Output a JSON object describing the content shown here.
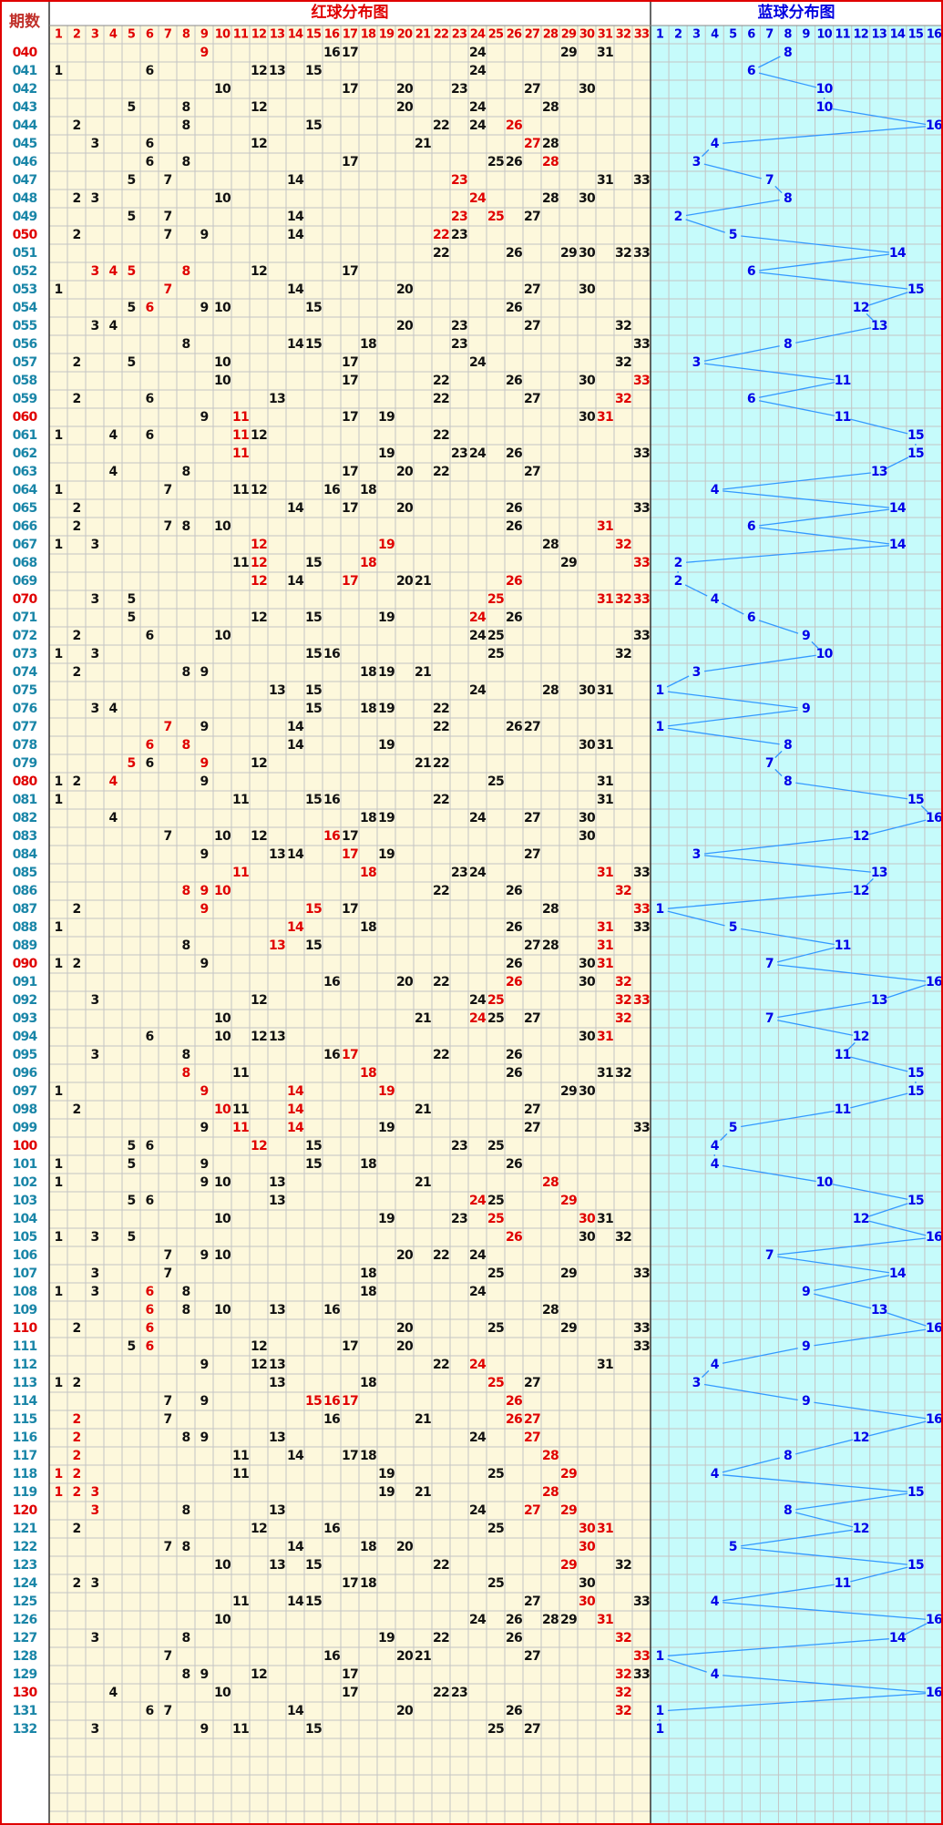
{
  "header": {
    "period_title": "期数",
    "red_title": "红球分布图",
    "blue_title": "蓝球分布图",
    "red_columns": [
      1,
      2,
      3,
      4,
      5,
      6,
      7,
      8,
      9,
      10,
      11,
      12,
      13,
      14,
      15,
      16,
      17,
      18,
      19,
      20,
      21,
      22,
      23,
      24,
      25,
      26,
      27,
      28,
      29,
      30,
      31,
      32,
      33
    ],
    "blue_columns": [
      1,
      2,
      3,
      4,
      5,
      6,
      7,
      8,
      9,
      10,
      11,
      12,
      13,
      14,
      15,
      16
    ]
  },
  "rows": [
    {
      "period": "040",
      "red": [
        9,
        16,
        17,
        24,
        29,
        31
      ],
      "red_hl": [
        0
      ],
      "blue": 8
    },
    {
      "period": "041",
      "red": [
        1,
        6,
        12,
        13,
        15,
        24
      ],
      "red_hl": [],
      "blue": 6
    },
    {
      "period": "042",
      "red": [
        10,
        17,
        20,
        23,
        27,
        30
      ],
      "red_hl": [],
      "blue": 10
    },
    {
      "period": "043",
      "red": [
        5,
        8,
        12,
        20,
        24,
        28
      ],
      "red_hl": [],
      "blue": 10
    },
    {
      "period": "044",
      "red": [
        2,
        8,
        15,
        22,
        24,
        26
      ],
      "red_hl": [
        5
      ],
      "blue": 16
    },
    {
      "period": "045",
      "red": [
        3,
        6,
        12,
        21,
        27,
        28
      ],
      "red_hl": [
        4
      ],
      "blue": 4
    },
    {
      "period": "046",
      "red": [
        6,
        8,
        17,
        25,
        26,
        28
      ],
      "red_hl": [
        5
      ],
      "blue": 3
    },
    {
      "period": "047",
      "red": [
        5,
        7,
        14,
        23,
        31,
        33
      ],
      "red_hl": [
        3
      ],
      "blue": 7
    },
    {
      "period": "048",
      "red": [
        2,
        3,
        10,
        24,
        28,
        30
      ],
      "red_hl": [
        3
      ],
      "blue": 8
    },
    {
      "period": "049",
      "red": [
        5,
        7,
        14,
        23,
        25,
        27
      ],
      "red_hl": [
        3,
        4
      ],
      "blue": 2
    },
    {
      "period": "050",
      "red": [
        2,
        7,
        9,
        14,
        22,
        23
      ],
      "red_hl": [
        4
      ],
      "blue": 5
    },
    {
      "period": "051",
      "red": [
        22,
        26,
        29,
        30,
        32,
        33
      ],
      "red_hl": [],
      "blue": 14
    },
    {
      "period": "052",
      "red": [
        3,
        4,
        5,
        8,
        12,
        17
      ],
      "red_hl": [
        0,
        1,
        2,
        3
      ],
      "blue": 6
    },
    {
      "period": "053",
      "red": [
        1,
        7,
        14,
        20,
        27,
        30
      ],
      "red_hl": [
        1
      ],
      "blue": 15
    },
    {
      "period": "054",
      "red": [
        5,
        6,
        9,
        10,
        15,
        26
      ],
      "red_hl": [
        1
      ],
      "blue": 12
    },
    {
      "period": "055",
      "red": [
        3,
        4,
        20,
        23,
        27,
        32
      ],
      "red_hl": [],
      "blue": 13
    },
    {
      "period": "056",
      "red": [
        8,
        14,
        15,
        18,
        23,
        33
      ],
      "red_hl": [],
      "blue": 8
    },
    {
      "period": "057",
      "red": [
        2,
        5,
        10,
        17,
        24,
        32
      ],
      "red_hl": [],
      "blue": 3
    },
    {
      "period": "058",
      "red": [
        10,
        17,
        22,
        26,
        30,
        33
      ],
      "red_hl": [
        5
      ],
      "blue": 11
    },
    {
      "period": "059",
      "red": [
        2,
        6,
        13,
        22,
        27,
        32
      ],
      "red_hl": [
        5
      ],
      "blue": 6
    },
    {
      "period": "060",
      "red": [
        9,
        11,
        17,
        19,
        30,
        31
      ],
      "red_hl": [
        1,
        5
      ],
      "blue": 11
    },
    {
      "period": "061",
      "red": [
        1,
        4,
        6,
        11,
        12,
        22
      ],
      "red_hl": [
        3
      ],
      "blue": 15
    },
    {
      "period": "062",
      "red": [
        11,
        19,
        23,
        24,
        26,
        33
      ],
      "red_hl": [
        0
      ],
      "blue": 15
    },
    {
      "period": "063",
      "red": [
        4,
        8,
        17,
        20,
        22,
        27
      ],
      "red_hl": [],
      "blue": 13
    },
    {
      "period": "064",
      "red": [
        1,
        7,
        11,
        12,
        16,
        18
      ],
      "red_hl": [],
      "blue": 4
    },
    {
      "period": "065",
      "red": [
        2,
        14,
        17,
        20,
        26,
        33
      ],
      "red_hl": [],
      "blue": 14
    },
    {
      "period": "066",
      "red": [
        2,
        7,
        8,
        10,
        26,
        31
      ],
      "red_hl": [
        5
      ],
      "blue": 6
    },
    {
      "period": "067",
      "red": [
        1,
        3,
        12,
        19,
        28,
        32
      ],
      "red_hl": [
        2,
        3,
        5
      ],
      "blue": 14
    },
    {
      "period": "068",
      "red": [
        11,
        12,
        15,
        18,
        29,
        33
      ],
      "red_hl": [
        1,
        3,
        5
      ],
      "blue": 2
    },
    {
      "period": "069",
      "red": [
        12,
        14,
        17,
        20,
        21,
        26
      ],
      "red_hl": [
        0,
        2,
        5
      ],
      "blue": 2
    },
    {
      "period": "070",
      "red": [
        3,
        5,
        25,
        31,
        32,
        33
      ],
      "red_hl": [
        2,
        3,
        4,
        5
      ],
      "blue": 4
    },
    {
      "period": "071",
      "red": [
        5,
        12,
        15,
        19,
        24,
        26
      ],
      "red_hl": [
        4
      ],
      "blue": 6
    },
    {
      "period": "072",
      "red": [
        2,
        6,
        10,
        24,
        25,
        33
      ],
      "red_hl": [],
      "blue": 9
    },
    {
      "period": "073",
      "red": [
        1,
        3,
        15,
        16,
        25,
        32
      ],
      "red_hl": [],
      "blue": 10
    },
    {
      "period": "074",
      "red": [
        2,
        8,
        9,
        18,
        19,
        21
      ],
      "red_hl": [],
      "blue": 3
    },
    {
      "period": "075",
      "red": [
        13,
        15,
        24,
        28,
        30,
        31
      ],
      "red_hl": [],
      "blue": 1
    },
    {
      "period": "076",
      "red": [
        3,
        4,
        15,
        18,
        19,
        22
      ],
      "red_hl": [],
      "blue": 9
    },
    {
      "period": "077",
      "red": [
        7,
        9,
        14,
        22,
        26,
        27
      ],
      "red_hl": [
        0
      ],
      "blue": 1
    },
    {
      "period": "078",
      "red": [
        6,
        8,
        14,
        19,
        30,
        31
      ],
      "red_hl": [
        0,
        1
      ],
      "blue": 8
    },
    {
      "period": "079",
      "red": [
        5,
        6,
        9,
        12,
        21,
        22
      ],
      "red_hl": [
        0,
        2
      ],
      "blue": 7
    },
    {
      "period": "080",
      "red": [
        1,
        2,
        4,
        9,
        25,
        31
      ],
      "red_hl": [
        2
      ],
      "blue": 8
    },
    {
      "period": "081",
      "red": [
        1,
        11,
        15,
        16,
        22,
        31
      ],
      "red_hl": [],
      "blue": 15
    },
    {
      "period": "082",
      "red": [
        4,
        18,
        19,
        24,
        27,
        30
      ],
      "red_hl": [],
      "blue": 16
    },
    {
      "period": "083",
      "red": [
        7,
        10,
        12,
        16,
        17,
        30
      ],
      "red_hl": [
        3
      ],
      "blue": 12
    },
    {
      "period": "084",
      "red": [
        9,
        13,
        14,
        17,
        19,
        27
      ],
      "red_hl": [
        3
      ],
      "blue": 3
    },
    {
      "period": "085",
      "red": [
        11,
        18,
        23,
        24,
        31,
        33
      ],
      "red_hl": [
        0,
        1,
        4
      ],
      "blue": 13
    },
    {
      "period": "086",
      "red": [
        8,
        9,
        10,
        22,
        26,
        32
      ],
      "red_hl": [
        0,
        1,
        2,
        5
      ],
      "blue": 12
    },
    {
      "period": "087",
      "red": [
        2,
        9,
        15,
        17,
        28,
        33
      ],
      "red_hl": [
        1,
        2,
        5
      ],
      "blue": 1
    },
    {
      "period": "088",
      "red": [
        1,
        14,
        18,
        26,
        31,
        33
      ],
      "red_hl": [
        1,
        4
      ],
      "blue": 5
    },
    {
      "period": "089",
      "red": [
        8,
        13,
        15,
        27,
        28,
        31
      ],
      "red_hl": [
        1,
        5
      ],
      "blue": 11
    },
    {
      "period": "090",
      "red": [
        1,
        2,
        9,
        26,
        30,
        31
      ],
      "red_hl": [
        5
      ],
      "blue": 7
    },
    {
      "period": "091",
      "red": [
        16,
        20,
        22,
        26,
        30,
        32
      ],
      "red_hl": [
        3,
        5
      ],
      "blue": 16
    },
    {
      "period": "092",
      "red": [
        3,
        12,
        24,
        25,
        32,
        33
      ],
      "red_hl": [
        3,
        4,
        5
      ],
      "blue": 13
    },
    {
      "period": "093",
      "red": [
        10,
        21,
        24,
        25,
        27,
        32
      ],
      "red_hl": [
        2,
        5
      ],
      "blue": 7
    },
    {
      "period": "094",
      "red": [
        6,
        10,
        12,
        13,
        30,
        31
      ],
      "red_hl": [
        5
      ],
      "blue": 12
    },
    {
      "period": "095",
      "red": [
        3,
        8,
        16,
        17,
        22,
        26
      ],
      "red_hl": [
        3
      ],
      "blue": 11
    },
    {
      "period": "096",
      "red": [
        8,
        11,
        18,
        26,
        31,
        32
      ],
      "red_hl": [
        0,
        2
      ],
      "blue": 15
    },
    {
      "period": "097",
      "red": [
        1,
        9,
        14,
        19,
        29,
        30
      ],
      "red_hl": [
        1,
        2,
        3
      ],
      "blue": 15
    },
    {
      "period": "098",
      "red": [
        2,
        10,
        11,
        14,
        21,
        27
      ],
      "red_hl": [
        1,
        3
      ],
      "blue": 11
    },
    {
      "period": "099",
      "red": [
        9,
        11,
        14,
        19,
        27,
        33
      ],
      "red_hl": [
        1,
        2
      ],
      "blue": 5
    },
    {
      "period": "100",
      "red": [
        5,
        6,
        12,
        15,
        23,
        25
      ],
      "red_hl": [
        2
      ],
      "blue": 4
    },
    {
      "period": "101",
      "red": [
        1,
        5,
        9,
        15,
        18,
        26
      ],
      "red_hl": [],
      "blue": 4
    },
    {
      "period": "102",
      "red": [
        1,
        9,
        10,
        13,
        21,
        28
      ],
      "red_hl": [
        5
      ],
      "blue": 10
    },
    {
      "period": "103",
      "red": [
        5,
        6,
        13,
        24,
        25,
        29
      ],
      "red_hl": [
        3,
        5
      ],
      "blue": 15
    },
    {
      "period": "104",
      "red": [
        10,
        19,
        23,
        25,
        30,
        31
      ],
      "red_hl": [
        3,
        4
      ],
      "blue": 12
    },
    {
      "period": "105",
      "red": [
        1,
        3,
        5,
        26,
        30,
        32
      ],
      "red_hl": [
        3
      ],
      "blue": 16
    },
    {
      "period": "106",
      "red": [
        7,
        9,
        10,
        20,
        22,
        24
      ],
      "red_hl": [],
      "blue": 7
    },
    {
      "period": "107",
      "red": [
        3,
        7,
        18,
        25,
        29,
        33
      ],
      "red_hl": [],
      "blue": 14
    },
    {
      "period": "108",
      "red": [
        1,
        3,
        6,
        8,
        18,
        24
      ],
      "red_hl": [
        2
      ],
      "blue": 9
    },
    {
      "period": "109",
      "red": [
        6,
        8,
        10,
        13,
        16,
        28
      ],
      "red_hl": [
        0
      ],
      "blue": 13
    },
    {
      "period": "110",
      "red": [
        2,
        6,
        20,
        25,
        29,
        33
      ],
      "red_hl": [
        1
      ],
      "blue": 16
    },
    {
      "period": "111",
      "red": [
        5,
        6,
        12,
        17,
        20,
        33
      ],
      "red_hl": [
        1
      ],
      "blue": 9
    },
    {
      "period": "112",
      "red": [
        9,
        12,
        13,
        22,
        24,
        31
      ],
      "red_hl": [
        4
      ],
      "blue": 4
    },
    {
      "period": "113",
      "red": [
        1,
        2,
        13,
        18,
        25,
        27
      ],
      "red_hl": [
        4
      ],
      "blue": 3
    },
    {
      "period": "114",
      "red": [
        7,
        9,
        15,
        16,
        17,
        26
      ],
      "red_hl": [
        2,
        3,
        4,
        5
      ],
      "blue": 9
    },
    {
      "period": "115",
      "red": [
        2,
        7,
        16,
        21,
        26,
        27
      ],
      "red_hl": [
        0,
        4,
        5
      ],
      "blue": 16
    },
    {
      "period": "116",
      "red": [
        2,
        8,
        9,
        13,
        24,
        27
      ],
      "red_hl": [
        0,
        5
      ],
      "blue": 12
    },
    {
      "period": "117",
      "red": [
        2,
        11,
        14,
        17,
        18,
        28
      ],
      "red_hl": [
        0,
        5
      ],
      "blue": 8
    },
    {
      "period": "118",
      "red": [
        1,
        2,
        11,
        19,
        25,
        29
      ],
      "red_hl": [
        0,
        1,
        5
      ],
      "blue": 4
    },
    {
      "period": "119",
      "red": [
        1,
        2,
        3,
        19,
        21,
        28
      ],
      "red_hl": [
        0,
        1,
        2,
        5
      ],
      "blue": 15
    },
    {
      "period": "120",
      "red": [
        3,
        8,
        13,
        24,
        27,
        29
      ],
      "red_hl": [
        0,
        4,
        5
      ],
      "blue": 8
    },
    {
      "period": "121",
      "red": [
        2,
        12,
        16,
        25,
        30,
        31
      ],
      "red_hl": [
        4,
        5
      ],
      "blue": 12
    },
    {
      "period": "122",
      "red": [
        7,
        8,
        14,
        18,
        20,
        30
      ],
      "red_hl": [
        5
      ],
      "blue": 5
    },
    {
      "period": "123",
      "red": [
        10,
        13,
        15,
        22,
        29,
        32
      ],
      "red_hl": [
        4
      ],
      "blue": 15
    },
    {
      "period": "124",
      "red": [
        2,
        3,
        17,
        18,
        25,
        30
      ],
      "red_hl": [],
      "blue": 11
    },
    {
      "period": "125",
      "red": [
        11,
        14,
        15,
        27,
        30,
        33
      ],
      "red_hl": [
        4
      ],
      "blue": 4
    },
    {
      "period": "126",
      "red": [
        10,
        24,
        26,
        28,
        29,
        31
      ],
      "red_hl": [
        5
      ],
      "blue": 16
    },
    {
      "period": "127",
      "red": [
        3,
        8,
        19,
        22,
        26,
        32
      ],
      "red_hl": [
        5
      ],
      "blue": 14
    },
    {
      "period": "128",
      "red": [
        7,
        16,
        20,
        21,
        27,
        33
      ],
      "red_hl": [
        5
      ],
      "blue": 1
    },
    {
      "period": "129",
      "red": [
        8,
        9,
        12,
        17,
        32,
        33
      ],
      "red_hl": [
        4
      ],
      "blue": 4
    },
    {
      "period": "130",
      "red": [
        4,
        10,
        17,
        22,
        23,
        32
      ],
      "red_hl": [
        5
      ],
      "blue": 16
    },
    {
      "period": "131",
      "red": [
        6,
        7,
        14,
        20,
        26,
        32
      ],
      "red_hl": [
        5
      ],
      "blue": 1
    },
    {
      "period": "132",
      "red": [
        3,
        9,
        11,
        15,
        25,
        27
      ],
      "red_hl": [],
      "blue": 1
    }
  ]
}
